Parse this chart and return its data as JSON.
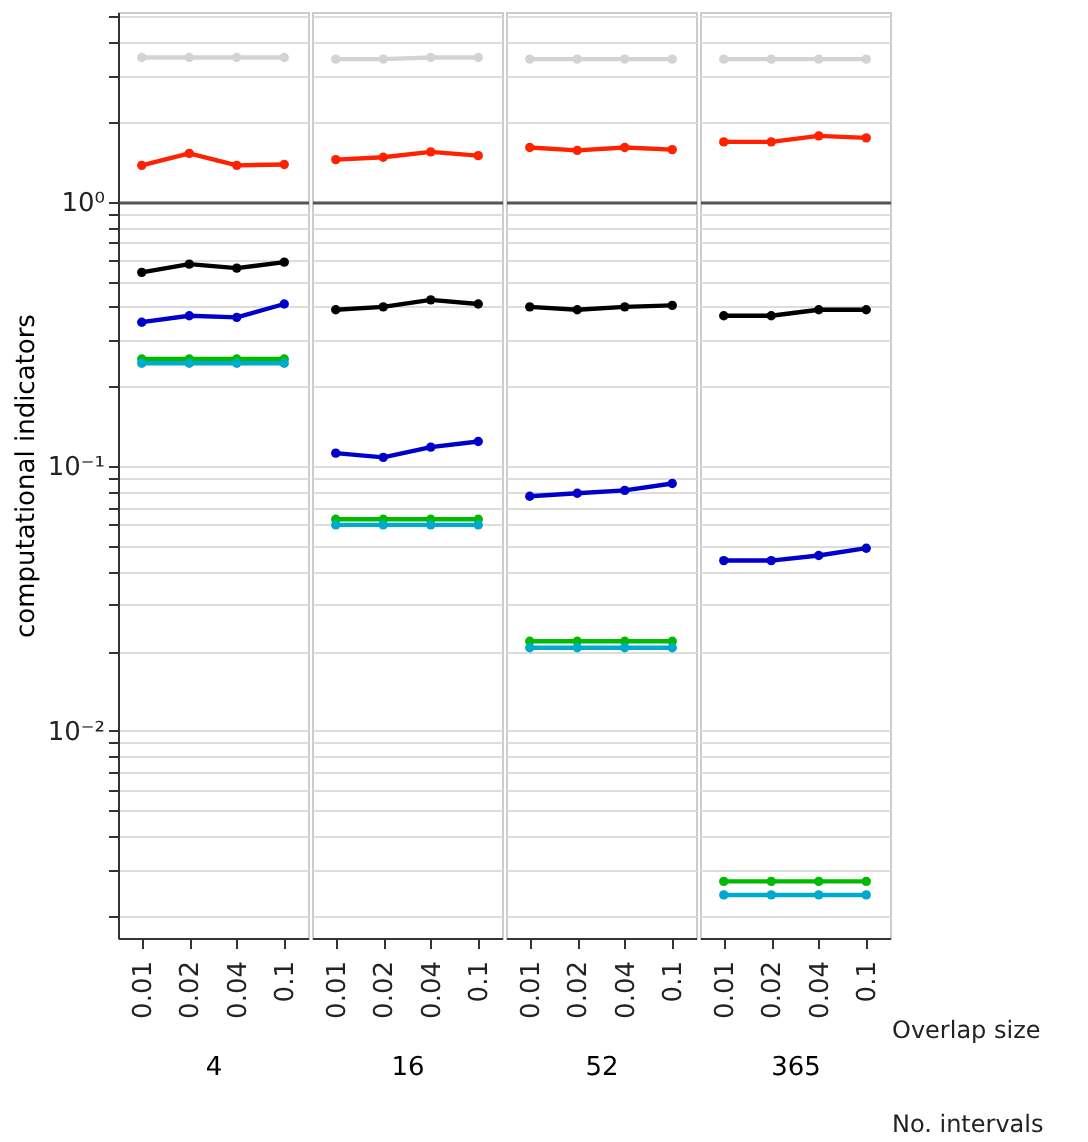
{
  "chart_data": [
    {
      "type": "line",
      "xlabel": "4",
      "ylabel": "computational indicators",
      "categories": [
        "0.01",
        "0.02",
        "0.04",
        "0.1"
      ],
      "log": "y",
      "ylim": [
        0.00165,
        5.2
      ],
      "yticks": [
        {
          "value": 0.002,
          "label": null
        },
        {
          "value": 0.003,
          "label": null
        },
        {
          "value": 0.004,
          "label": null
        },
        {
          "value": 0.005,
          "label": null
        },
        {
          "value": 0.006,
          "label": null
        },
        {
          "value": 0.007,
          "label": null
        },
        {
          "value": 0.008,
          "label": null
        },
        {
          "value": 0.009,
          "label": null
        },
        {
          "value": 0.01,
          "label": "10⁻²"
        },
        {
          "value": 0.02,
          "label": null
        },
        {
          "value": 0.03,
          "label": null
        },
        {
          "value": 0.04,
          "label": null
        },
        {
          "value": 0.05,
          "label": null
        },
        {
          "value": 0.06,
          "label": null
        },
        {
          "value": 0.07,
          "label": null
        },
        {
          "value": 0.08,
          "label": null
        },
        {
          "value": 0.09,
          "label": null
        },
        {
          "value": 0.1,
          "label": "10⁻¹"
        },
        {
          "value": 0.2,
          "label": null
        },
        {
          "value": 0.3,
          "label": null
        },
        {
          "value": 0.4,
          "label": null
        },
        {
          "value": 0.5,
          "label": null
        },
        {
          "value": 0.6,
          "label": null
        },
        {
          "value": 0.7,
          "label": null
        },
        {
          "value": 0.8,
          "label": null
        },
        {
          "value": 0.9,
          "label": null
        },
        {
          "value": 1,
          "label": "10⁰"
        },
        {
          "value": 2,
          "label": null
        },
        {
          "value": 3,
          "label": null
        },
        {
          "value": 4,
          "label": null
        },
        {
          "value": 5,
          "label": null
        }
      ],
      "grid": "y",
      "marker": "circle",
      "line_style": "solid",
      "legend": false,
      "ref_lines": [
        {
          "axis": "y",
          "value": 1,
          "color": "#555555"
        }
      ],
      "series": [
        {
          "color": "#d3d3d3",
          "values": [
            3.5,
            3.5,
            3.5,
            3.5
          ]
        },
        {
          "color": "#ff2200",
          "values": [
            1.37,
            1.52,
            1.37,
            1.38
          ]
        },
        {
          "color": "#000000",
          "values": [
            0.54,
            0.58,
            0.56,
            0.59
          ]
        },
        {
          "color": "#0000cc",
          "values": [
            0.35,
            0.37,
            0.365,
            0.41
          ]
        },
        {
          "color": "#00bb00",
          "values": [
            0.254,
            0.254,
            0.254,
            0.254
          ]
        },
        {
          "color": "#00aacc",
          "values": [
            0.245,
            0.245,
            0.245,
            0.245
          ]
        }
      ]
    },
    {
      "type": "line",
      "xlabel": "16",
      "categories": [
        "0.01",
        "0.02",
        "0.04",
        "0.1"
      ],
      "log": "y",
      "ylim": [
        0.00165,
        5.2
      ],
      "tick_labels": "x",
      "grid": "y",
      "marker": "circle",
      "line_style": "solid",
      "legend": false,
      "ref_lines": [
        {
          "axis": "y",
          "value": 1,
          "color": "#555555"
        }
      ],
      "series": [
        {
          "color": "#d3d3d3",
          "values": [
            3.45,
            3.45,
            3.5,
            3.5
          ]
        },
        {
          "color": "#ff2200",
          "values": [
            1.44,
            1.47,
            1.54,
            1.49
          ]
        },
        {
          "color": "#000000",
          "values": [
            0.39,
            0.4,
            0.425,
            0.41
          ]
        },
        {
          "color": "#0000cc",
          "values": [
            0.112,
            0.108,
            0.118,
            0.124
          ]
        },
        {
          "color": "#00bb00",
          "values": [
            0.063,
            0.063,
            0.063,
            0.063
          ]
        },
        {
          "color": "#00aacc",
          "values": [
            0.06,
            0.06,
            0.06,
            0.06
          ]
        }
      ]
    },
    {
      "type": "line",
      "xlabel": "52",
      "categories": [
        "0.01",
        "0.02",
        "0.04",
        "0.1"
      ],
      "log": "y",
      "ylim": [
        0.00165,
        5.2
      ],
      "tick_labels": "x",
      "grid": "y",
      "marker": "circle",
      "line_style": "solid",
      "legend": false,
      "ref_lines": [
        {
          "axis": "y",
          "value": 1,
          "color": "#555555"
        }
      ],
      "series": [
        {
          "color": "#d3d3d3",
          "values": [
            3.45,
            3.45,
            3.45,
            3.45
          ]
        },
        {
          "color": "#ff2200",
          "values": [
            1.6,
            1.56,
            1.6,
            1.57
          ]
        },
        {
          "color": "#000000",
          "values": [
            0.4,
            0.39,
            0.4,
            0.405
          ]
        },
        {
          "color": "#0000cc",
          "values": [
            0.077,
            0.079,
            0.081,
            0.086
          ]
        },
        {
          "color": "#00bb00",
          "values": [
            0.0218,
            0.0218,
            0.0218,
            0.0218
          ]
        },
        {
          "color": "#00aacc",
          "values": [
            0.0206,
            0.0206,
            0.0206,
            0.0206
          ]
        }
      ]
    },
    {
      "type": "line",
      "xlabel": "365",
      "categories": [
        "0.01",
        "0.02",
        "0.04",
        "0.1"
      ],
      "log": "y",
      "ylim": [
        0.00165,
        5.2
      ],
      "tick_labels": "x",
      "grid": "y",
      "marker": "circle",
      "line_style": "solid",
      "legend": false,
      "ref_lines": [
        {
          "axis": "y",
          "value": 1,
          "color": "#555555"
        }
      ],
      "annotations": [
        "Overlap size",
        "No. intervals"
      ],
      "series": [
        {
          "color": "#d3d3d3",
          "values": [
            3.45,
            3.45,
            3.45,
            3.45
          ]
        },
        {
          "color": "#ff2200",
          "values": [
            1.68,
            1.68,
            1.77,
            1.74
          ]
        },
        {
          "color": "#000000",
          "values": [
            0.37,
            0.37,
            0.39,
            0.39
          ]
        },
        {
          "color": "#0000cc",
          "values": [
            0.044,
            0.044,
            0.046,
            0.049
          ]
        },
        {
          "color": "#00bb00",
          "values": [
            0.0027,
            0.0027,
            0.0027,
            0.0027
          ]
        },
        {
          "color": "#00aacc",
          "values": [
            0.0024,
            0.0024,
            0.0024,
            0.0024
          ]
        }
      ]
    }
  ]
}
